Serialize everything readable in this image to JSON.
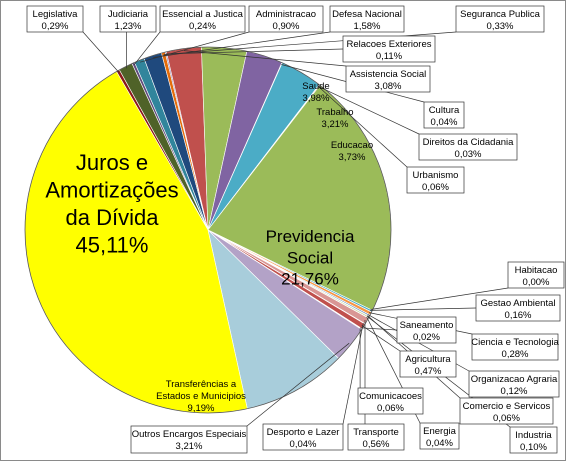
{
  "chart_data": {
    "type": "pie",
    "title": "",
    "slices": [
      {
        "name": "Legislativa",
        "value": 0.29,
        "label": "0,29%",
        "color": "#8b1a1a"
      },
      {
        "name": "Judiciaria",
        "value": 1.23,
        "label": "1,23%",
        "color": "#4f6228"
      },
      {
        "name": "Essencial a Justica",
        "value": 0.24,
        "label": "0,24%",
        "color": "#604a7b"
      },
      {
        "name": "Administracao",
        "value": 0.9,
        "label": "0,90%",
        "color": "#31859c"
      },
      {
        "name": "Defesa Nacional",
        "value": 1.58,
        "label": "1,58%",
        "color": "#1f497d"
      },
      {
        "name": "Seguranca Publica",
        "value": 0.33,
        "label": "0,33%",
        "color": "#e46c0a"
      },
      {
        "name": "Relacoes Exteriores",
        "value": 0.11,
        "label": "0,11%",
        "color": "#8064a2"
      },
      {
        "name": "Assistencia Social",
        "value": 3.08,
        "label": "3,08%",
        "color": "#c0504d"
      },
      {
        "name": "Saude",
        "value": 3.98,
        "label": "3,98%",
        "color": "#9bbb59"
      },
      {
        "name": "Trabalho",
        "value": 3.21,
        "label": "3,21%",
        "color": "#8064a2"
      },
      {
        "name": "Cultura",
        "value": 0.04,
        "label": "0,04%",
        "color": "#f79646"
      },
      {
        "name": "Educacao",
        "value": 3.73,
        "label": "3,73%",
        "color": "#4bacc6"
      },
      {
        "name": "Direitos da Cidadania",
        "value": 0.03,
        "label": "0,03%",
        "color": "#4f81bd"
      },
      {
        "name": "Urbanismo",
        "value": 0.06,
        "label": "0,06%",
        "color": "#c0504d"
      },
      {
        "name": "Previdencia Social",
        "value": 21.76,
        "label": "21,76%",
        "color": "#9bbb59"
      },
      {
        "name": "Habitacao",
        "value": 0.0,
        "label": "0,00%",
        "color": "#8064a2"
      },
      {
        "name": "Gestao Ambiental",
        "value": 0.16,
        "label": "0,16%",
        "color": "#4bacc6"
      },
      {
        "name": "Ciencia e Tecnologia",
        "value": 0.28,
        "label": "0,28%",
        "color": "#f79646"
      },
      {
        "name": "Organizacao Agraria",
        "value": 0.12,
        "label": "0,12%",
        "color": "#4f81bd"
      },
      {
        "name": "Comercio e Servicos",
        "value": 0.06,
        "label": "0,06%",
        "color": "#c0504d"
      },
      {
        "name": "Industria",
        "value": 0.1,
        "label": "0,10%",
        "color": "#9bbb59"
      },
      {
        "name": "Energia",
        "value": 0.04,
        "label": "0,04%",
        "color": "#8064a2"
      },
      {
        "name": "Transporte",
        "value": 0.56,
        "label": "0,56%",
        "color": "#d99694"
      },
      {
        "name": "Desporto e Lazer",
        "value": 0.04,
        "label": "0,04%",
        "color": "#f79646"
      },
      {
        "name": "Agricultura",
        "value": 0.47,
        "label": "0,47%",
        "color": "#c0504d"
      },
      {
        "name": "Saneamento",
        "value": 0.02,
        "label": "0,02%",
        "color": "#4f81bd"
      },
      {
        "name": "Comunicacoes",
        "value": 0.06,
        "label": "0,06%",
        "color": "#9bbb59"
      },
      {
        "name": "Outros Encargos Especiais",
        "value": 3.21,
        "label": "3,21%",
        "color": "#b3a2c7"
      },
      {
        "name": "Transferências a Estados e Municípios",
        "value": 9.19,
        "label": "9,19%",
        "color": "#a8cddb"
      },
      {
        "name": "Juros e Amortizações da Dívida",
        "value": 45.11,
        "label": "45,11%",
        "color": "#ffff00"
      }
    ],
    "legend": "none"
  }
}
